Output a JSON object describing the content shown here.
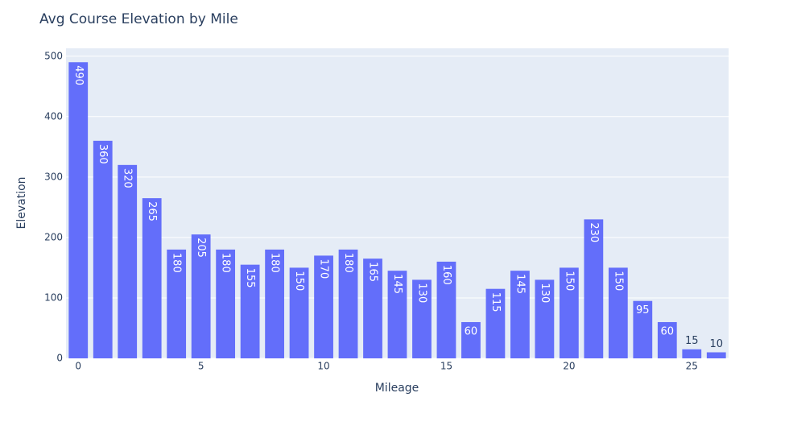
{
  "chart_data": {
    "type": "bar",
    "title": "Avg Course Elevation by Mile",
    "x_label": "Mileage",
    "y_label": "Elevation",
    "x": [
      0,
      1,
      2,
      3,
      4,
      5,
      6,
      7,
      8,
      9,
      10,
      11,
      12,
      13,
      14,
      15,
      16,
      17,
      18,
      19,
      20,
      21,
      22,
      23,
      24,
      25,
      26
    ],
    "values": [
      490,
      360,
      320,
      265,
      180,
      205,
      180,
      155,
      180,
      150,
      170,
      180,
      165,
      145,
      130,
      160,
      60,
      115,
      145,
      130,
      150,
      230,
      150,
      95,
      60,
      15,
      10
    ],
    "color": "#636efa",
    "xlim": [
      -0.5,
      26.5
    ],
    "xticks": [
      0,
      5,
      10,
      15,
      20,
      25
    ],
    "ylim": [
      0,
      513
    ],
    "yticks": [
      0,
      100,
      200,
      300,
      400,
      500
    ],
    "grid": true
  }
}
